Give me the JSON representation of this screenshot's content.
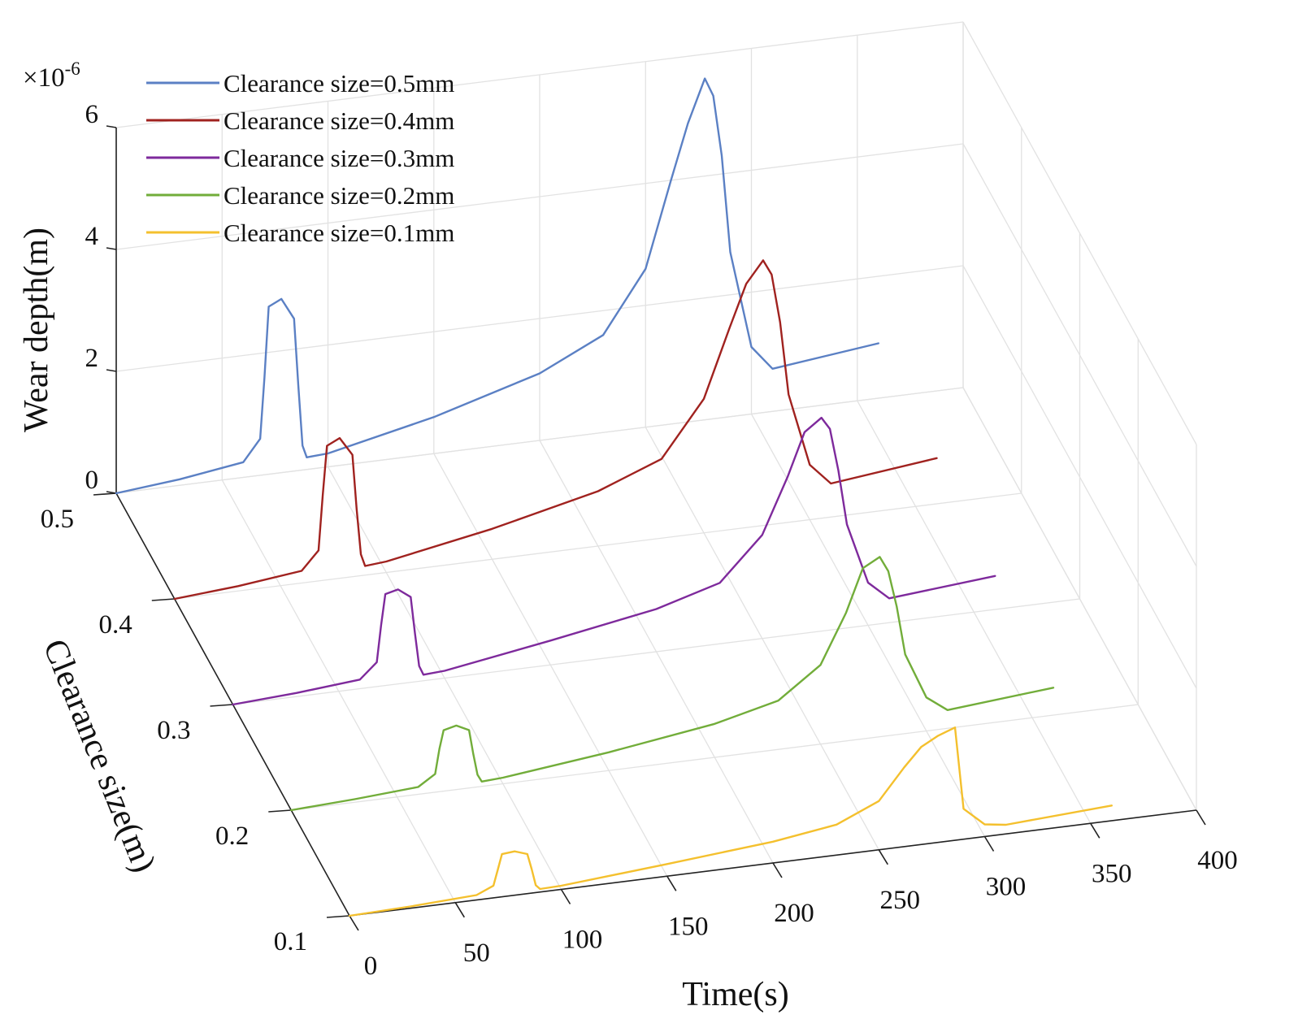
{
  "chart_data": {
    "type": "line",
    "subtype": "3d-waterfall",
    "zlabel": "Wear depth(m)",
    "zscale_label": "×10",
    "zscale_exponent": "-6",
    "xlabel": "Time(s)",
    "ylabel": "Clearance size(m)",
    "xlim": [
      0,
      400
    ],
    "zlim": [
      0,
      6
    ],
    "x_ticks": [
      "0",
      "50",
      "100",
      "150",
      "200",
      "250",
      "300",
      "350",
      "400"
    ],
    "y_ticks": [
      "0.1",
      "0.2",
      "0.3",
      "0.4",
      "0.5"
    ],
    "z_ticks": [
      "0",
      "2",
      "4",
      "6"
    ],
    "grid": true,
    "legend_position": "top-left",
    "series": [
      {
        "name": "Clearance size=0.5mm",
        "clearance": 0.5,
        "color": "#5b80c4",
        "x": [
          0,
          30,
          60,
          68,
          70,
          72,
          78,
          84,
          86,
          88,
          90,
          100,
          150,
          200,
          230,
          250,
          262,
          270,
          278,
          282,
          286,
          290,
          300,
          310,
          360
        ],
        "y": [
          0.0,
          0.1,
          0.25,
          0.6,
          1.6,
          2.75,
          2.85,
          2.5,
          1.4,
          0.4,
          0.2,
          0.22,
          0.6,
          1.1,
          1.6,
          2.6,
          4.0,
          4.9,
          5.6,
          5.3,
          4.3,
          2.7,
          1.1,
          0.7,
          0.9
        ]
      },
      {
        "name": "Clearance size=0.4mm",
        "clearance": 0.4,
        "color": "#a0221f",
        "x": [
          0,
          30,
          60,
          68,
          70,
          72,
          78,
          84,
          86,
          88,
          90,
          100,
          150,
          200,
          230,
          250,
          262,
          270,
          278,
          282,
          286,
          290,
          300,
          310,
          360
        ],
        "y": [
          0.0,
          0.08,
          0.2,
          0.5,
          1.4,
          2.2,
          2.3,
          2.0,
          1.1,
          0.35,
          0.15,
          0.18,
          0.5,
          0.9,
          1.3,
          2.2,
          3.3,
          4.0,
          4.35,
          4.1,
          3.3,
          2.1,
          0.9,
          0.55,
          0.75
        ]
      },
      {
        "name": "Clearance size=0.3mm",
        "clearance": 0.3,
        "color": "#7e2a9c",
        "x": [
          0,
          30,
          60,
          68,
          70,
          72,
          78,
          84,
          86,
          88,
          90,
          100,
          150,
          200,
          230,
          250,
          262,
          270,
          278,
          282,
          286,
          290,
          300,
          310,
          360
        ],
        "y": [
          0.0,
          0.06,
          0.15,
          0.4,
          1.0,
          1.5,
          1.55,
          1.4,
          0.8,
          0.25,
          0.1,
          0.12,
          0.4,
          0.7,
          1.0,
          1.7,
          2.6,
          3.3,
          3.5,
          3.3,
          2.6,
          1.7,
          0.7,
          0.4,
          0.55
        ]
      },
      {
        "name": "Clearance size=0.2mm",
        "clearance": 0.2,
        "color": "#72ad3a",
        "x": [
          0,
          30,
          60,
          68,
          70,
          72,
          78,
          84,
          86,
          88,
          90,
          100,
          150,
          200,
          230,
          250,
          262,
          270,
          278,
          282,
          286,
          290,
          300,
          310,
          360
        ],
        "y": [
          0.0,
          0.05,
          0.12,
          0.3,
          0.7,
          1.0,
          1.05,
          0.95,
          0.55,
          0.2,
          0.08,
          0.1,
          0.3,
          0.55,
          0.8,
          1.3,
          2.1,
          2.8,
          2.95,
          2.7,
          2.1,
          1.3,
          0.55,
          0.3,
          0.45
        ]
      },
      {
        "name": "Clearance size=0.1mm",
        "clearance": 0.1,
        "color": "#f4c02e",
        "x": [
          0,
          30,
          60,
          68,
          70,
          72,
          78,
          84,
          86,
          88,
          90,
          100,
          150,
          200,
          230,
          250,
          262,
          270,
          278,
          282,
          286,
          290,
          300,
          310,
          360
        ],
        "y": [
          0.0,
          0.03,
          0.08,
          0.2,
          0.45,
          0.7,
          0.72,
          0.65,
          0.4,
          0.12,
          0.05,
          0.06,
          0.2,
          0.35,
          0.5,
          0.8,
          1.3,
          1.6,
          1.75,
          1.8,
          1.85,
          0.5,
          0.2,
          0.15,
          0.25
        ]
      }
    ]
  }
}
